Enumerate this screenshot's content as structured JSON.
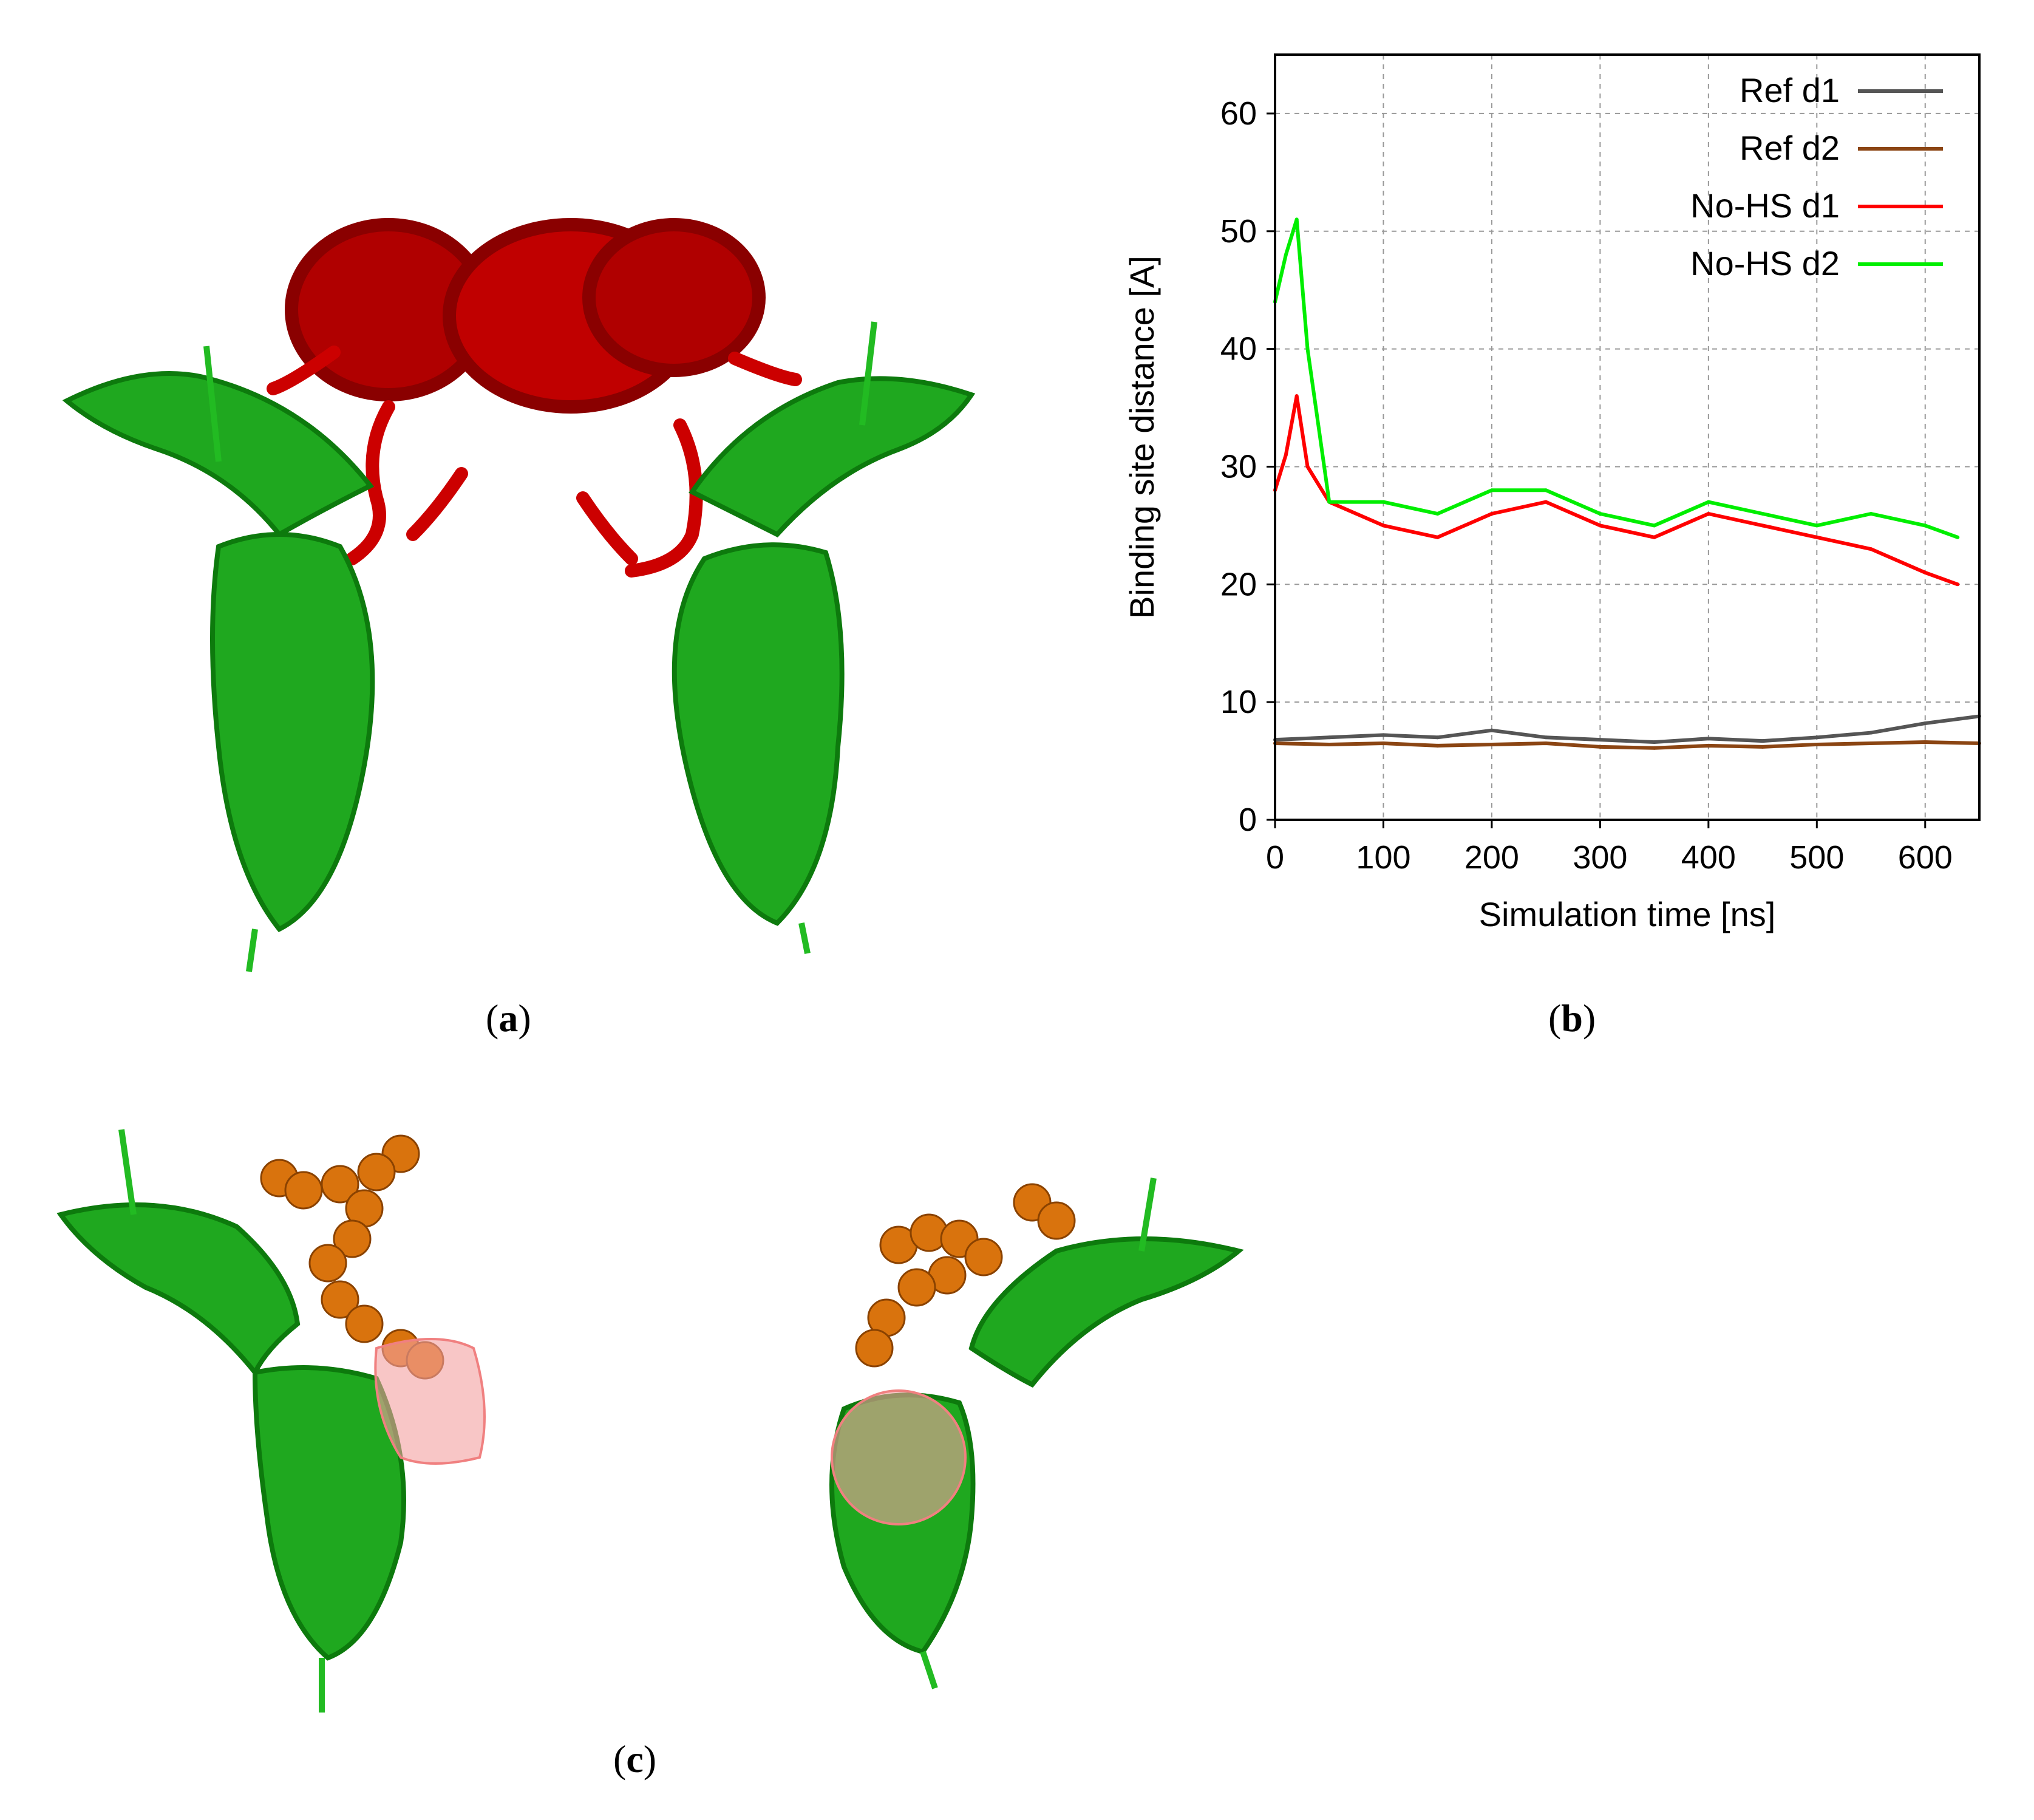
{
  "captions": {
    "a": {
      "open": "(",
      "letter": "a",
      "close": ")"
    },
    "b": {
      "open": "(",
      "letter": "b",
      "close": ")"
    },
    "c": {
      "open": "(",
      "letter": "c",
      "close": ")"
    }
  },
  "colors": {
    "protein_red": "#cc0000",
    "protein_green": "#22bb22",
    "ligand_orange": "#d9730d",
    "mesh_pink": "#f08080"
  },
  "chart_data": {
    "type": "line",
    "xlabel": "Simulation time [ns]",
    "ylabel": "Binding site distance [A]",
    "xlim": [
      0,
      650
    ],
    "ylim": [
      0,
      65
    ],
    "xticks": [
      0,
      100,
      200,
      300,
      400,
      500,
      600
    ],
    "yticks": [
      0,
      10,
      20,
      30,
      40,
      50,
      60
    ],
    "grid": true,
    "legend_position": "top-right",
    "series": [
      {
        "name": "Ref d1",
        "color": "#555555",
        "x": [
          0,
          50,
          100,
          150,
          200,
          250,
          300,
          350,
          400,
          450,
          500,
          550,
          600,
          650
        ],
        "y": [
          6.8,
          7.0,
          7.2,
          7.0,
          7.6,
          7.0,
          6.8,
          6.6,
          6.9,
          6.7,
          7.0,
          7.4,
          8.2,
          8.8
        ]
      },
      {
        "name": "Ref d2",
        "color": "#8b4513",
        "x": [
          0,
          50,
          100,
          150,
          200,
          250,
          300,
          350,
          400,
          450,
          500,
          550,
          600,
          650
        ],
        "y": [
          6.5,
          6.4,
          6.5,
          6.3,
          6.4,
          6.5,
          6.2,
          6.1,
          6.3,
          6.2,
          6.4,
          6.5,
          6.6,
          6.5
        ]
      },
      {
        "name": "No-HS d1",
        "color": "#ff0000",
        "x": [
          0,
          10,
          20,
          30,
          50,
          100,
          150,
          200,
          250,
          300,
          350,
          400,
          450,
          500,
          550,
          600,
          630
        ],
        "y": [
          28,
          31,
          36,
          30,
          27,
          25,
          24,
          26,
          27,
          25,
          24,
          26,
          25,
          24,
          23,
          21,
          20
        ]
      },
      {
        "name": "No-HS d2",
        "color": "#00ee00",
        "x": [
          0,
          10,
          20,
          30,
          50,
          100,
          150,
          200,
          250,
          300,
          350,
          400,
          450,
          500,
          550,
          600,
          630
        ],
        "y": [
          44,
          48,
          51,
          40,
          27,
          27,
          26,
          28,
          28,
          26,
          25,
          27,
          26,
          25,
          26,
          25,
          24
        ]
      }
    ]
  }
}
